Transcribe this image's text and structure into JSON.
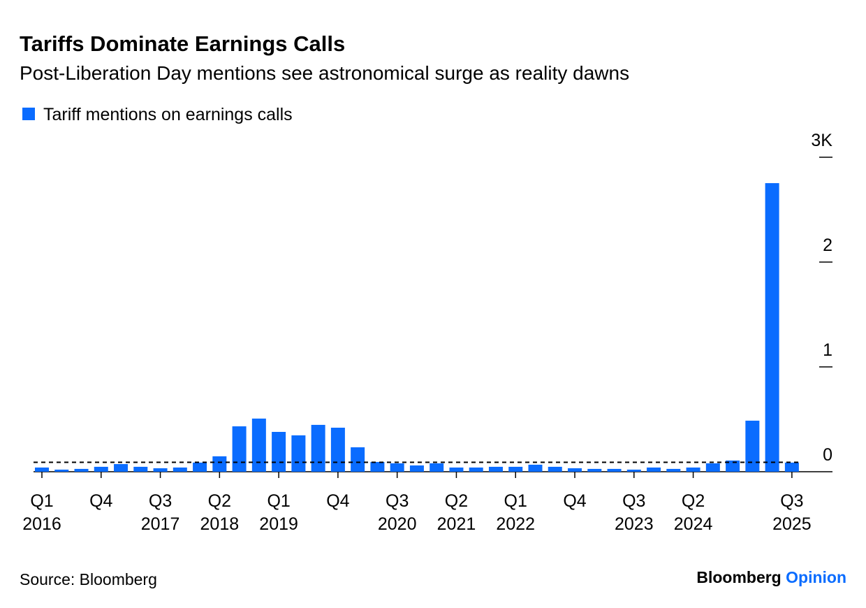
{
  "chart_data": {
    "type": "bar",
    "title": "Tariffs Dominate Earnings Calls",
    "subtitle": "Post-Liberation Day mentions see astronomical surge as reality dawns",
    "source": "Source: Bloomberg",
    "brand": [
      "Bloomberg",
      "Opinion"
    ],
    "brand_color": "#0a6cff",
    "categories": [
      "Q1 2016",
      null,
      null,
      "Q4",
      null,
      null,
      "Q3 2017",
      null,
      null,
      "Q2 2018",
      null,
      null,
      "Q1 2019",
      null,
      null,
      "Q4",
      null,
      null,
      "Q3 2020",
      null,
      null,
      "Q2 2021",
      null,
      null,
      "Q1 2022",
      null,
      null,
      "Q4",
      null,
      null,
      "Q3 2023",
      null,
      null,
      "Q2 2024",
      null,
      null,
      null,
      null,
      "Q3 2025"
    ],
    "series": [
      {
        "name": "Tariff mentions on earnings calls",
        "color": "#0a6cff",
        "values": [
          40,
          20,
          27,
          47,
          73,
          47,
          33,
          40,
          87,
          147,
          433,
          507,
          380,
          347,
          447,
          420,
          233,
          93,
          80,
          60,
          80,
          40,
          40,
          47,
          47,
          67,
          47,
          33,
          27,
          27,
          20,
          40,
          27,
          40,
          80,
          107,
          487,
          2753,
          87
        ]
      }
    ],
    "reference_line": 90,
    "ylim": [
      0,
      3000
    ],
    "yticks": [
      0,
      {
        "value": 1000,
        "label": "1"
      },
      {
        "value": 2000,
        "label": "2"
      },
      {
        "value": 3000,
        "label": "3K"
      }
    ]
  }
}
